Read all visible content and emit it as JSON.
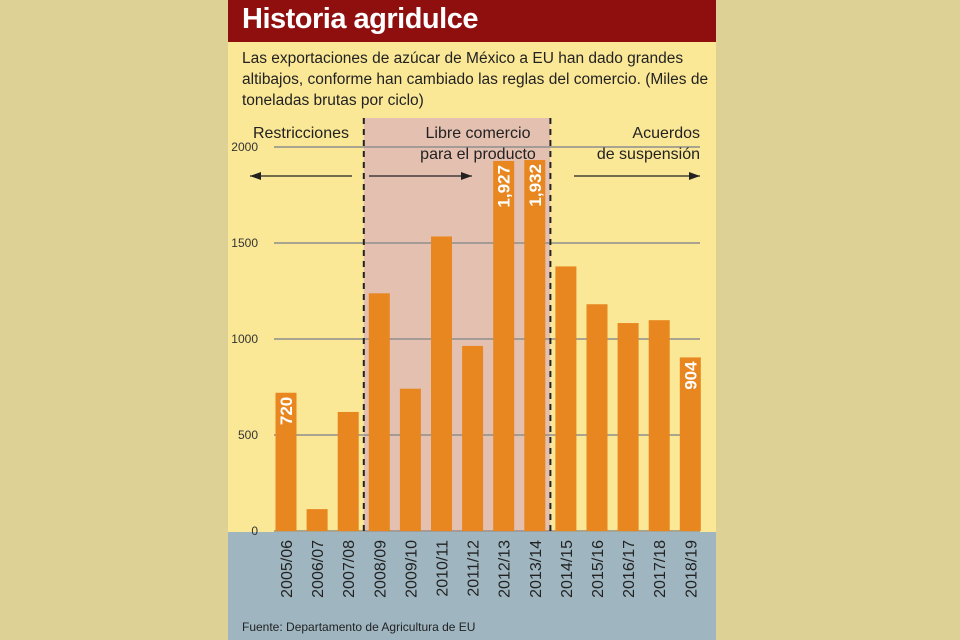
{
  "title": "Historia agridulce",
  "subtitle": "Las exportaciones de azúcar de México a EU han dado grandes altibajos, conforme han cambiado las reglas del comercio. (Miles de toneladas brutas por ciclo)",
  "source": "Fuente: Departamento de Agricultura de EU",
  "colors": {
    "bar": "#e8861f",
    "title_bg": "#8f0f0f",
    "panel_bg": "#fbe896",
    "shaded_period": "#e4c0b0",
    "axis_band": "#9fb6c1"
  },
  "chart_data": {
    "type": "bar",
    "title": "Historia agridulce",
    "xlabel": "",
    "ylabel": "",
    "ylim": [
      0,
      2000
    ],
    "yticks": [
      0,
      500,
      1000,
      1500,
      2000
    ],
    "grid": true,
    "categories": [
      "2005/06",
      "2006/07",
      "2007/08",
      "2008/09",
      "2009/10",
      "2010/11",
      "2011/12",
      "2012/13",
      "2013/14",
      "2014/15",
      "2015/16",
      "2016/17",
      "2017/18",
      "2018/19"
    ],
    "values": [
      720,
      114,
      620,
      1238,
      741,
      1534,
      964,
      1927,
      1932,
      1378,
      1181,
      1083,
      1098,
      904
    ],
    "data_labels": {
      "0": "720",
      "7": "1,927",
      "8": "1,932",
      "13": "904"
    },
    "periods": [
      {
        "label_lines": [
          "Restricciones"
        ],
        "from": "2005/06",
        "to": "2007/08",
        "arrow": "left"
      },
      {
        "label_lines": [
          "Libre comercio",
          "para el producto"
        ],
        "from": "2008/09",
        "to": "2013/14",
        "arrow": "right",
        "shaded": true
      },
      {
        "label_lines": [
          "Acuerdos",
          "de suspensión"
        ],
        "from": "2014/15",
        "to": "2018/19",
        "arrow": "right"
      }
    ]
  }
}
